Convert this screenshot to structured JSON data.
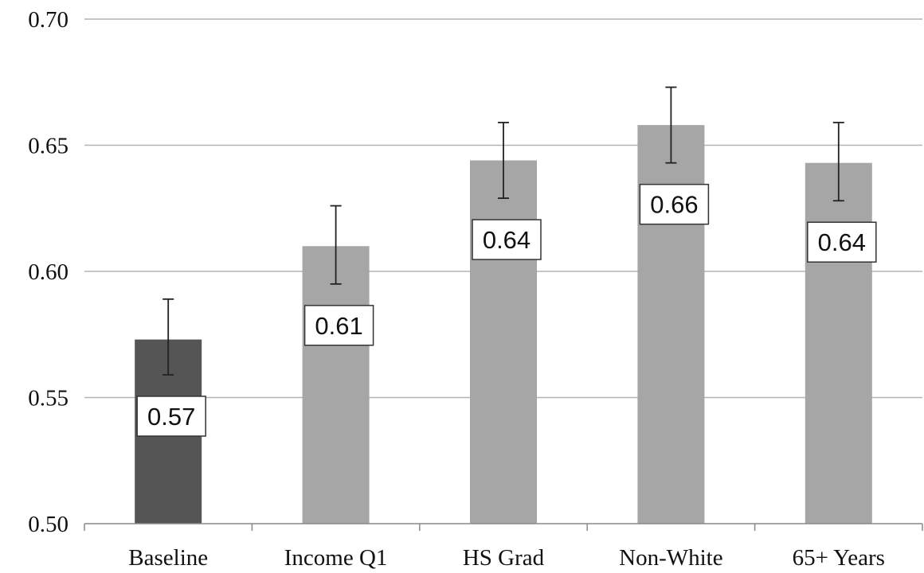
{
  "chart_data": {
    "type": "bar",
    "categories": [
      "Baseline",
      "Income Q1",
      "HS Grad",
      "Non-White",
      "65+ Years"
    ],
    "values": [
      0.573,
      0.61,
      0.644,
      0.658,
      0.643
    ],
    "error_low": [
      0.559,
      0.595,
      0.629,
      0.643,
      0.628
    ],
    "error_high": [
      0.589,
      0.626,
      0.659,
      0.673,
      0.659
    ],
    "data_labels": [
      "0.57",
      "0.61",
      "0.64",
      "0.66",
      "0.64"
    ],
    "yticks": [
      "0.50",
      "0.55",
      "0.60",
      "0.65",
      "0.70"
    ],
    "ytick_values": [
      0.5,
      0.55,
      0.6,
      0.65,
      0.7
    ],
    "ylim": [
      0.5,
      0.7
    ],
    "grid": true,
    "legend": "none",
    "colors": {
      "highlight_bar": "#555555",
      "bar": "#a6a6a6",
      "gridline": "#b3b3b3",
      "axis": "#888888",
      "error_bar": "#222222",
      "label_box_border": "#333333"
    }
  }
}
